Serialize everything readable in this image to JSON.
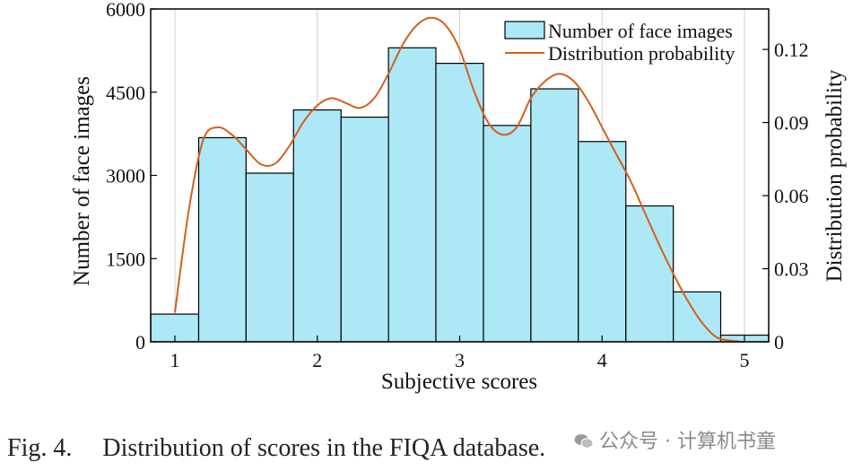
{
  "chart_data": {
    "type": "bar",
    "xlabel": "Subjective scores",
    "ylabel": "Number of face images",
    "y2label": "Distribution probability",
    "xlim": [
      0.83,
      5.17
    ],
    "ylim": [
      0,
      6000
    ],
    "y2lim": [
      0,
      0.1366
    ],
    "xticks": [
      "1",
      "2",
      "3",
      "4",
      "5"
    ],
    "yticks": [
      "0",
      "1500",
      "3000",
      "4500",
      "6000"
    ],
    "y2ticks": [
      "0",
      "0.03",
      "0.06",
      "0.09",
      "0.12"
    ],
    "bin_edges": [
      0.83,
      1.167,
      1.5,
      1.833,
      2.167,
      2.5,
      2.833,
      3.167,
      3.5,
      3.833,
      4.167,
      4.5,
      4.833,
      5.17
    ],
    "series": [
      {
        "name": "Number of face images",
        "type": "bar",
        "color": "#ade8f7",
        "values": [
          500,
          3680,
          3040,
          4180,
          4050,
          5300,
          5020,
          3900,
          4560,
          3610,
          2450,
          900,
          120
        ]
      },
      {
        "name": "Distribution probability",
        "type": "line",
        "color": "#d2601a",
        "x": [
          1.0,
          1.1,
          1.2,
          1.3,
          1.4,
          1.5,
          1.6,
          1.7,
          1.8,
          1.9,
          2.0,
          2.1,
          2.2,
          2.3,
          2.4,
          2.5,
          2.6,
          2.7,
          2.8,
          2.9,
          3.0,
          3.1,
          3.2,
          3.3,
          3.4,
          3.5,
          3.6,
          3.7,
          3.8,
          3.9,
          4.0,
          4.1,
          4.2,
          4.3,
          4.4,
          4.5,
          4.6,
          4.7,
          4.8,
          4.9,
          5.0
        ],
        "y": [
          0.012,
          0.055,
          0.083,
          0.088,
          0.085,
          0.079,
          0.073,
          0.073,
          0.08,
          0.09,
          0.097,
          0.1,
          0.098,
          0.096,
          0.1,
          0.11,
          0.122,
          0.13,
          0.133,
          0.13,
          0.12,
          0.103,
          0.09,
          0.085,
          0.088,
          0.1,
          0.107,
          0.11,
          0.107,
          0.099,
          0.088,
          0.077,
          0.066,
          0.053,
          0.04,
          0.028,
          0.017,
          0.008,
          0.002,
          0.0005,
          0.0
        ]
      }
    ],
    "legend": "top-right",
    "grid": "vertical"
  },
  "caption": {
    "label": "Fig. 4.",
    "text": "Distribution of scores in the FIQA database."
  },
  "watermark": {
    "text": "公众号 · 计算机书童"
  },
  "colors": {
    "bar_fill": "#ade8f7",
    "curve": "#d2601a",
    "axis": "#000000",
    "grid": "#d0d0d0"
  }
}
